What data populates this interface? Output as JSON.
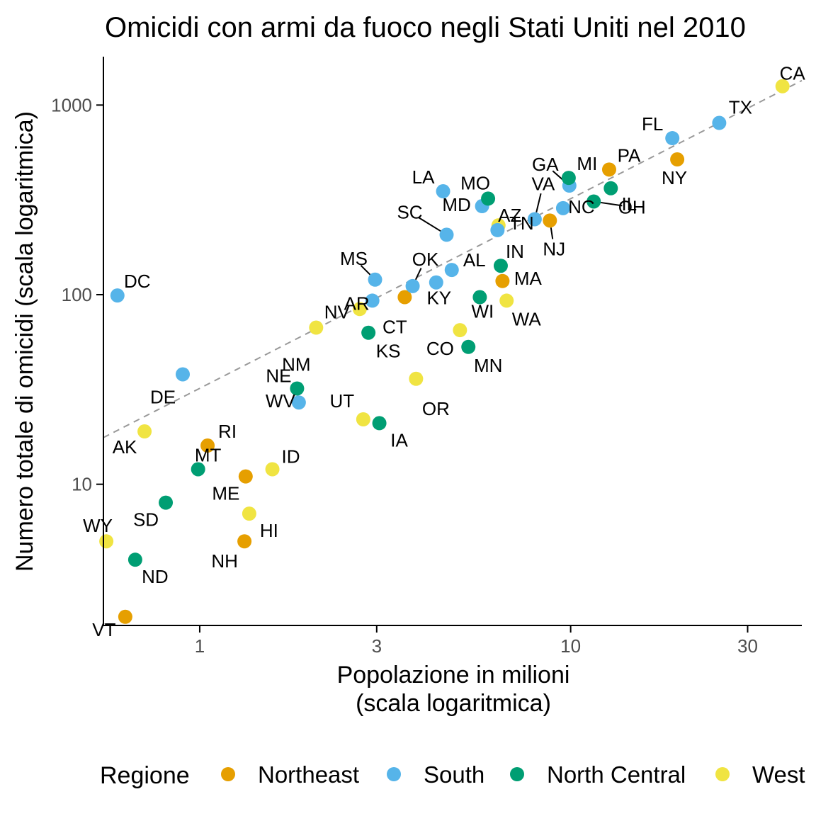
{
  "chart_data": {
    "type": "scatter",
    "title": "Omicidi con armi da fuoco negli Stati Uniti nel 2010",
    "xlabel": [
      "Popolazione in milioni",
      "(scala logaritmica)"
    ],
    "ylabel": "Numero totale di omicidi (scala logaritmica)",
    "x_scale": "log",
    "y_scale": "log",
    "xlim": [
      0.55,
      42
    ],
    "ylim": [
      1.8,
      1800
    ],
    "x_ticks": [
      1,
      3,
      10,
      30
    ],
    "x_tick_labels": [
      "1",
      "3",
      "10",
      "30"
    ],
    "y_ticks": [
      10,
      100,
      1000
    ],
    "y_tick_labels": [
      "10",
      "100",
      "1000"
    ],
    "grid": false,
    "legend": {
      "title": "Regione",
      "position": "bottom",
      "entries": [
        "Northeast",
        "South",
        "North Central",
        "West"
      ]
    },
    "colors": {
      "Northeast": "#E69F00",
      "South": "#56B4E9",
      "North Central": "#009E73",
      "West": "#F0E442"
    },
    "reference_line": {
      "style": "dashed",
      "color": "#999999",
      "intercept_log10": 1.506,
      "slope": 1
    },
    "points": [
      {
        "label": "AL",
        "region": "South",
        "x": 4.78,
        "y": 135
      },
      {
        "label": "AK",
        "region": "West",
        "x": 0.71,
        "y": 19
      },
      {
        "label": "AZ",
        "region": "West",
        "x": 6.39,
        "y": 232
      },
      {
        "label": "AR",
        "region": "South",
        "x": 2.92,
        "y": 93
      },
      {
        "label": "CA",
        "region": "West",
        "x": 37.25,
        "y": 1257
      },
      {
        "label": "CO",
        "region": "West",
        "x": 5.03,
        "y": 65
      },
      {
        "label": "CT",
        "region": "Northeast",
        "x": 3.57,
        "y": 97
      },
      {
        "label": "DE",
        "region": "South",
        "x": 0.9,
        "y": 38
      },
      {
        "label": "DC",
        "region": "South",
        "x": 0.6,
        "y": 99
      },
      {
        "label": "FL",
        "region": "South",
        "x": 18.8,
        "y": 669
      },
      {
        "label": "GA",
        "region": "South",
        "x": 9.92,
        "y": 376
      },
      {
        "label": "HI",
        "region": "West",
        "x": 1.36,
        "y": 7
      },
      {
        "label": "ID",
        "region": "West",
        "x": 1.57,
        "y": 12
      },
      {
        "label": "IL",
        "region": "North Central",
        "x": 12.83,
        "y": 364
      },
      {
        "label": "IN",
        "region": "North Central",
        "x": 6.48,
        "y": 142
      },
      {
        "label": "IA",
        "region": "North Central",
        "x": 3.05,
        "y": 21
      },
      {
        "label": "KS",
        "region": "North Central",
        "x": 2.85,
        "y": 63
      },
      {
        "label": "KY",
        "region": "South",
        "x": 4.34,
        "y": 116
      },
      {
        "label": "LA",
        "region": "South",
        "x": 4.53,
        "y": 351
      },
      {
        "label": "ME",
        "region": "Northeast",
        "x": 1.33,
        "y": 11
      },
      {
        "label": "MD",
        "region": "South",
        "x": 5.77,
        "y": 293
      },
      {
        "label": "MA",
        "region": "Northeast",
        "x": 6.55,
        "y": 118
      },
      {
        "label": "MI",
        "region": "North Central",
        "x": 9.88,
        "y": 413
      },
      {
        "label": "MN",
        "region": "North Central",
        "x": 5.3,
        "y": 53
      },
      {
        "label": "MS",
        "region": "South",
        "x": 2.97,
        "y": 120
      },
      {
        "label": "MO",
        "region": "North Central",
        "x": 5.99,
        "y": 321
      },
      {
        "label": "MT",
        "region": "North Central",
        "x": 0.99,
        "y": 12
      },
      {
        "label": "NE",
        "region": "North Central",
        "x": 1.83,
        "y": 32
      },
      {
        "label": "NV",
        "region": "West",
        "x": 2.7,
        "y": 84
      },
      {
        "label": "NH",
        "region": "Northeast",
        "x": 1.32,
        "y": 5
      },
      {
        "label": "NJ",
        "region": "Northeast",
        "x": 8.79,
        "y": 246
      },
      {
        "label": "NM",
        "region": "West",
        "x": 2.06,
        "y": 67
      },
      {
        "label": "NY",
        "region": "Northeast",
        "x": 19.38,
        "y": 517
      },
      {
        "label": "NC",
        "region": "South",
        "x": 9.54,
        "y": 286
      },
      {
        "label": "ND",
        "region": "North Central",
        "x": 0.67,
        "y": 4
      },
      {
        "label": "OH",
        "region": "North Central",
        "x": 11.54,
        "y": 310
      },
      {
        "label": "OK",
        "region": "South",
        "x": 3.75,
        "y": 111
      },
      {
        "label": "OR",
        "region": "West",
        "x": 3.83,
        "y": 36
      },
      {
        "label": "PA",
        "region": "Northeast",
        "x": 12.7,
        "y": 457
      },
      {
        "label": "RI",
        "region": "Northeast",
        "x": 1.05,
        "y": 16
      },
      {
        "label": "SC",
        "region": "South",
        "x": 4.63,
        "y": 207
      },
      {
        "label": "SD",
        "region": "North Central",
        "x": 0.81,
        "y": 8
      },
      {
        "label": "TN",
        "region": "South",
        "x": 6.35,
        "y": 219
      },
      {
        "label": "TX",
        "region": "South",
        "x": 25.15,
        "y": 805
      },
      {
        "label": "UT",
        "region": "West",
        "x": 2.76,
        "y": 22
      },
      {
        "label": "VT",
        "region": "Northeast",
        "x": 0.63,
        "y": 2
      },
      {
        "label": "VA",
        "region": "South",
        "x": 8.0,
        "y": 250
      },
      {
        "label": "WA",
        "region": "West",
        "x": 6.72,
        "y": 93
      },
      {
        "label": "WV",
        "region": "South",
        "x": 1.85,
        "y": 27
      },
      {
        "label": "WI",
        "region": "North Central",
        "x": 5.69,
        "y": 97
      },
      {
        "label": "WY",
        "region": "West",
        "x": 0.56,
        "y": 5
      }
    ]
  }
}
